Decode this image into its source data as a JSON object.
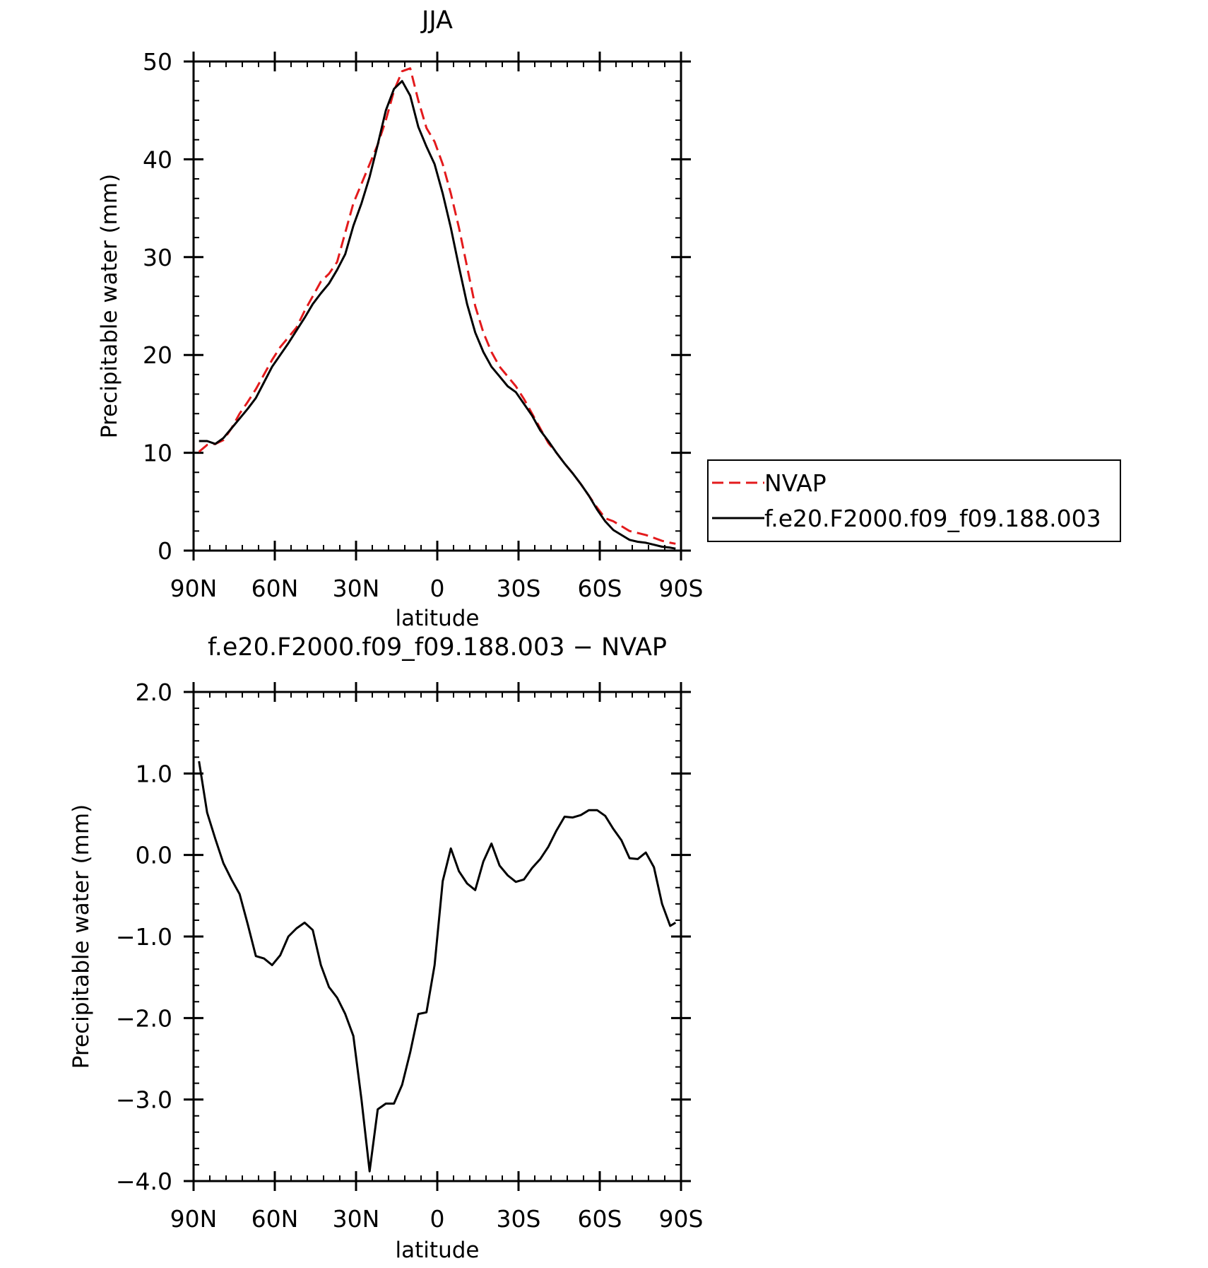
{
  "chart_data": [
    {
      "type": "line",
      "title": "JJA",
      "xlabel": "latitude",
      "ylabel": "Precipitable water (mm)",
      "xlim": [
        90,
        -90
      ],
      "ylim": [
        0,
        50
      ],
      "x_note_units": "degrees latitude, positive = N",
      "x_ticks": [
        {
          "value": 90,
          "label": "90N"
        },
        {
          "value": 60,
          "label": "60N"
        },
        {
          "value": 30,
          "label": "30N"
        },
        {
          "value": 0,
          "label": "0"
        },
        {
          "value": -30,
          "label": "30S"
        },
        {
          "value": -60,
          "label": "60S"
        },
        {
          "value": -90,
          "label": "90S"
        }
      ],
      "y_ticks": [
        {
          "value": 0,
          "label": "0"
        },
        {
          "value": 10,
          "label": "10"
        },
        {
          "value": 20,
          "label": "20"
        },
        {
          "value": 30,
          "label": "30"
        },
        {
          "value": 40,
          "label": "40"
        },
        {
          "value": 50,
          "label": "50"
        }
      ],
      "legend": "right",
      "series": [
        {
          "name": "NVAP",
          "color": "#e31a1c",
          "dash": "dashed",
          "x": [
            88,
            85,
            82,
            79,
            76,
            73,
            70,
            67,
            64,
            61,
            58,
            55,
            52,
            49,
            46,
            43,
            40,
            37,
            34,
            31,
            28,
            25,
            22,
            19,
            16,
            13,
            10,
            7,
            4,
            1,
            -2,
            -5,
            -8,
            -11,
            -14,
            -17,
            -20,
            -23,
            -26,
            -29,
            -32,
            -35,
            -38,
            -41,
            -44,
            -47,
            -50,
            -53,
            -56,
            -59,
            -62,
            -65,
            -68,
            -71,
            -74,
            -77,
            -80,
            -83,
            -86,
            -88
          ],
          "y": [
            10.1,
            10.8,
            10.9,
            11.3,
            12.5,
            14.0,
            15.2,
            16.5,
            18.0,
            19.5,
            20.8,
            21.8,
            22.8,
            24.5,
            26.0,
            27.5,
            28.3,
            29.5,
            32.5,
            35.5,
            37.5,
            39.5,
            41.5,
            44.0,
            47.0,
            49.0,
            49.3,
            46.0,
            43.2,
            41.8,
            39.5,
            36.5,
            33.0,
            29.0,
            25.0,
            22.3,
            20.3,
            18.8,
            17.8,
            16.8,
            15.5,
            14.0,
            12.5,
            11.0,
            10.0,
            8.9,
            7.9,
            6.8,
            5.6,
            4.4,
            3.3,
            3.0,
            2.5,
            2.0,
            1.8,
            1.6,
            1.3,
            1.0,
            0.8,
            0.7
          ]
        },
        {
          "name": "f.e20.F2000.f09_f09.188.003",
          "color": "#000000",
          "dash": "solid",
          "x": [
            88,
            85,
            82,
            79,
            76,
            73,
            70,
            67,
            64,
            61,
            58,
            55,
            52,
            49,
            46,
            43,
            40,
            37,
            34,
            31,
            28,
            25,
            22,
            19,
            16,
            13,
            10,
            7,
            4,
            1,
            -2,
            -5,
            -8,
            -11,
            -14,
            -17,
            -20,
            -23,
            -26,
            -29,
            -32,
            -35,
            -38,
            -41,
            -44,
            -47,
            -50,
            -53,
            -56,
            -59,
            -62,
            -65,
            -68,
            -71,
            -74,
            -77,
            -80,
            -83,
            -86,
            -88
          ],
          "y": [
            11.2,
            11.2,
            10.9,
            11.5,
            12.5,
            13.5,
            14.5,
            15.6,
            17.2,
            18.8,
            20.0,
            21.2,
            22.5,
            23.8,
            25.2,
            26.3,
            27.3,
            28.7,
            30.3,
            33.2,
            35.5,
            38.2,
            41.5,
            45.0,
            47.2,
            48.0,
            46.5,
            43.3,
            41.3,
            39.5,
            36.5,
            33.0,
            29.0,
            25.2,
            22.3,
            20.3,
            18.8,
            17.8,
            16.8,
            16.2,
            15.0,
            13.8,
            12.3,
            11.2,
            10.0,
            8.9,
            7.9,
            6.8,
            5.6,
            4.2,
            3.0,
            2.1,
            1.6,
            1.1,
            0.9,
            0.8,
            0.6,
            0.4,
            0.3,
            0.2
          ]
        }
      ]
    },
    {
      "type": "line",
      "title": "f.e20.F2000.f09_f09.188.003 − NVAP",
      "xlabel": "latitude",
      "ylabel": "Precipitable water (mm)",
      "xlim": [
        90,
        -90
      ],
      "ylim": [
        -4.0,
        2.0
      ],
      "x_ticks": [
        {
          "value": 90,
          "label": "90N"
        },
        {
          "value": 60,
          "label": "60N"
        },
        {
          "value": 30,
          "label": "30N"
        },
        {
          "value": 0,
          "label": "0"
        },
        {
          "value": -30,
          "label": "30S"
        },
        {
          "value": -60,
          "label": "60S"
        },
        {
          "value": -90,
          "label": "90S"
        }
      ],
      "y_ticks": [
        {
          "value": 2.0,
          "label": "2.0"
        },
        {
          "value": 1.0,
          "label": "1.0"
        },
        {
          "value": 0.0,
          "label": "0.0"
        },
        {
          "value": -1.0,
          "label": "−1.0"
        },
        {
          "value": -2.0,
          "label": "−2.0"
        },
        {
          "value": -3.0,
          "label": "−3.0"
        },
        {
          "value": -4.0,
          "label": "−4.0"
        }
      ],
      "series": [
        {
          "color": "#000000",
          "dash": "solid",
          "x": [
            88,
            85,
            82,
            79,
            76,
            73,
            70,
            67,
            64,
            61,
            58,
            55,
            52,
            49,
            46,
            43,
            40,
            37,
            34,
            31,
            28,
            25,
            22,
            19,
            16,
            13,
            10,
            7,
            4,
            1,
            -2,
            -5,
            -8,
            -11,
            -14,
            -17,
            -20,
            -23,
            -26,
            -29,
            -32,
            -35,
            -38,
            -41,
            -44,
            -47,
            -50,
            -53,
            -56,
            -59,
            -62,
            -65,
            -68,
            -71,
            -74,
            -77,
            -80,
            -83,
            -86,
            -88
          ],
          "y": [
            1.15,
            0.52,
            0.2,
            -0.1,
            -0.3,
            -0.48,
            -0.85,
            -1.24,
            -1.27,
            -1.35,
            -1.23,
            -1.0,
            -0.9,
            -0.83,
            -0.92,
            -1.35,
            -1.62,
            -1.75,
            -1.95,
            -2.22,
            -3.0,
            -3.88,
            -3.12,
            -3.05,
            -3.05,
            -2.82,
            -2.42,
            -1.95,
            -1.93,
            -1.35,
            -0.32,
            0.08,
            -0.2,
            -0.35,
            -0.43,
            -0.08,
            0.14,
            -0.13,
            -0.25,
            -0.33,
            -0.3,
            -0.16,
            -0.05,
            0.1,
            0.3,
            0.47,
            0.46,
            0.49,
            0.55,
            0.55,
            0.48,
            0.32,
            0.18,
            -0.04,
            -0.05,
            0.03,
            -0.15,
            -0.6,
            -0.87,
            -0.83
          ]
        }
      ]
    }
  ]
}
